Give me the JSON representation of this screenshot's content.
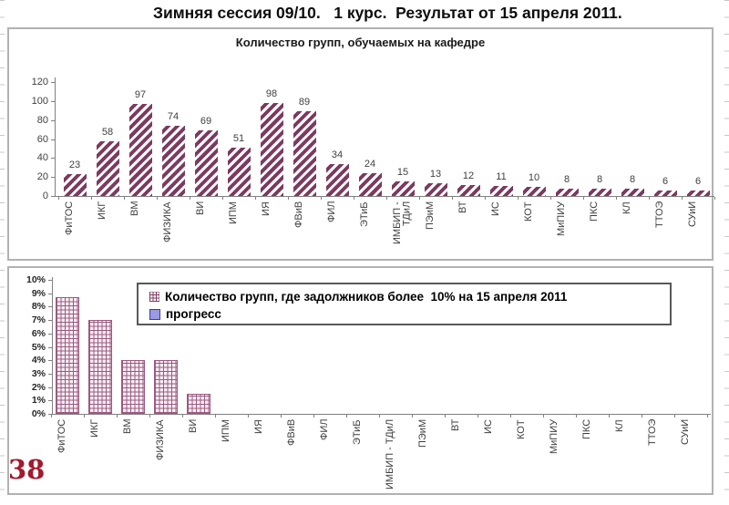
{
  "page": {
    "title": "Зимняя сессия 09/10.   1 курс.  Результат от 15 апреля 2011.",
    "page_number": "38"
  },
  "colors": {
    "bar_hatch_maroon": "#7d3a5f",
    "progress_lavender": "#9a9ae4",
    "page_number_red": "#a5182e"
  },
  "chart_data": [
    {
      "type": "bar",
      "title": "Количество групп, обучаемых на кафедре",
      "categories": [
        "ФиТОС",
        "ИКГ",
        "ВМ",
        "ФИЗИКА",
        "ВИ",
        "ИПМ",
        "ИЯ",
        "ФВиВ",
        "ФИЛ",
        "ЭТиБ",
        "ИМБИП - ТДиЛ",
        "ПЭиМ",
        "ВТ",
        "ИС",
        "КОТ",
        "МиПИУ",
        "ПКС",
        "КЛ",
        "ТТОЭ",
        "СУиИ"
      ],
      "values": [
        23,
        58,
        97,
        74,
        69,
        51,
        98,
        89,
        34,
        24,
        15,
        13,
        12,
        11,
        10,
        8,
        8,
        8,
        6,
        6
      ],
      "ylim": [
        0,
        120
      ],
      "yticks": [
        0,
        20,
        40,
        60,
        80,
        100,
        120
      ],
      "ytick_suffix": "",
      "data_labels": true,
      "bar_style": "diagonal-hatch",
      "grid": false,
      "legend": "none"
    },
    {
      "type": "bar",
      "title": "",
      "categories": [
        "ФиТОС",
        "ИКГ",
        "ВМ",
        "ФИЗИКА",
        "ВИ",
        "ИПМ",
        "ИЯ",
        "ФВиВ",
        "ФИЛ",
        "ЭТиБ",
        "ИМБИП - ТДиЛ",
        "ПЭиМ",
        "ВТ",
        "ИС",
        "КОТ",
        "МиПИУ",
        "ПКС",
        "КЛ",
        "ТТОЭ",
        "СУиИ"
      ],
      "series": [
        {
          "name": "Количество групп, где задолжников более  10% на 15 апреля 2011",
          "style": "grid-hatch",
          "values": [
            8.7,
            7,
            4,
            4,
            1.5,
            0,
            0,
            0,
            0,
            0,
            0,
            0,
            0,
            0,
            0,
            0,
            0,
            0,
            0,
            0
          ]
        },
        {
          "name": "прогресс",
          "style": "solid-lavender",
          "values": [
            0,
            0,
            0,
            0,
            0,
            0,
            0,
            0,
            0,
            0,
            0,
            0,
            0,
            0,
            0,
            0,
            0,
            0,
            0,
            0
          ]
        }
      ],
      "ylim": [
        0,
        10
      ],
      "yticks": [
        0,
        1,
        2,
        3,
        4,
        5,
        6,
        7,
        8,
        9,
        10
      ],
      "ytick_suffix": "%",
      "data_labels": false,
      "grid": false,
      "legend": "top-inside"
    }
  ]
}
